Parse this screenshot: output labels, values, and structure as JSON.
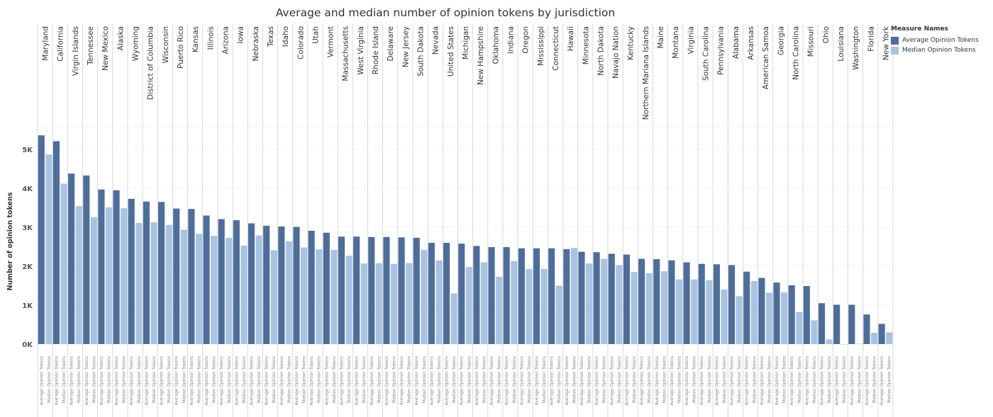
{
  "chart_data": {
    "type": "bar",
    "title": "Average and median number of opinion tokens by jurisdiction",
    "ylabel": "Number of opinion tokens",
    "xlabel": "",
    "ylim": [
      -200,
      5600
    ],
    "yticks": [
      {
        "value": 0,
        "label": "0K"
      },
      {
        "value": 1000,
        "label": "1K"
      },
      {
        "value": 2000,
        "label": "2K"
      },
      {
        "value": 3000,
        "label": "3K"
      },
      {
        "value": 4000,
        "label": "4K"
      },
      {
        "value": 5000,
        "label": "5K"
      }
    ],
    "grid": true,
    "legend_position": "top-right",
    "legend_title": "Measure Names",
    "categories": [
      "Maryland",
      "California",
      "Virgin Islands",
      "Tennessee",
      "New Mexico",
      "Alaska",
      "Wyoming",
      "District of Columbia",
      "Wisconsin",
      "Puerto Rico",
      "Kansas",
      "Illinois",
      "Arizona",
      "Iowa",
      "Nebraska",
      "Texas",
      "Idaho",
      "Colorado",
      "Utah",
      "Vermont",
      "Massachusetts",
      "West Virginia",
      "Rhode Island",
      "Delaware",
      "New Jersey",
      "South Dakota",
      "Nevada",
      "United States",
      "Michigan",
      "New Hampshire",
      "Oklahoma",
      "Indiana",
      "Oregon",
      "Mississippi",
      "Connecticut",
      "Hawaii",
      "Minnesota",
      "North Dakota",
      "Navajo Nation",
      "Kentucky",
      "Northern Mariana Islands",
      "Maine",
      "Montana",
      "Virginia",
      "South Carolina",
      "Pennsylvania",
      "Alabama",
      "Arkansas",
      "American Samoa",
      "Georgia",
      "North Carolina",
      "Missouri",
      "Ohio",
      "Louisiana",
      "Washington",
      "Florida",
      "New York"
    ],
    "series": [
      {
        "name": "Average Opinion Tokens",
        "color": "#4e6d99",
        "values": [
          5360,
          5210,
          4380,
          4330,
          3970,
          3950,
          3730,
          3660,
          3650,
          3480,
          3470,
          3300,
          3210,
          3180,
          3100,
          3040,
          3020,
          3010,
          2910,
          2860,
          2760,
          2760,
          2750,
          2750,
          2740,
          2730,
          2600,
          2600,
          2580,
          2520,
          2490,
          2490,
          2460,
          2460,
          2460,
          2440,
          2370,
          2360,
          2320,
          2300,
          2190,
          2180,
          2150,
          2100,
          2060,
          2050,
          2030,
          1860,
          1700,
          1580,
          1510,
          1490,
          1050,
          1010,
          1010,
          760,
          520
        ]
      },
      {
        "name": "Median Opinion Tokens",
        "color": "#a8c3e3",
        "values": [
          4870,
          4120,
          3540,
          3260,
          3510,
          3490,
          3110,
          3130,
          3060,
          2940,
          2830,
          2780,
          2730,
          2530,
          2790,
          2410,
          2640,
          2480,
          2430,
          2420,
          2270,
          2070,
          2080,
          2060,
          2080,
          2420,
          2150,
          1300,
          1980,
          2100,
          1730,
          2130,
          1930,
          1930,
          1500,
          2470,
          2070,
          2190,
          2030,
          1850,
          1820,
          1870,
          1660,
          1660,
          1640,
          1400,
          1230,
          1620,
          1320,
          1330,
          820,
          610,
          120,
          -10,
          10,
          290,
          300
        ]
      }
    ],
    "measure_label_average": "Average Opinion Tokens",
    "measure_label_median": "Median Opinion Tokens"
  }
}
